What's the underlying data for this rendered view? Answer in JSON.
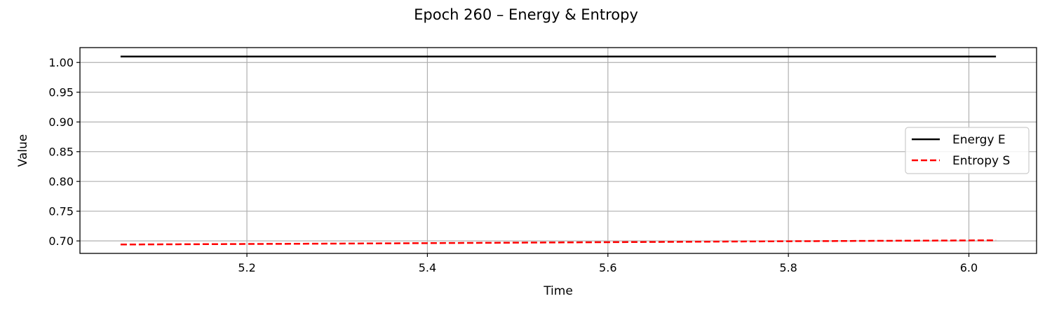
{
  "chart_data": {
    "type": "line",
    "title": "Epoch 260 – Energy & Entropy",
    "xlabel": "Time",
    "ylabel": "Value",
    "xlim": [
      5.015,
      6.075
    ],
    "ylim": [
      0.679,
      1.025
    ],
    "xticks": [
      5.2,
      5.4,
      5.6,
      5.8,
      6.0
    ],
    "xtick_labels": [
      "5.2",
      "5.4",
      "5.6",
      "5.8",
      "6.0"
    ],
    "yticks": [
      0.7,
      0.75,
      0.8,
      0.85,
      0.9,
      0.95,
      1.0
    ],
    "ytick_labels": [
      "0.70",
      "0.75",
      "0.80",
      "0.85",
      "0.90",
      "0.95",
      "1.00"
    ],
    "grid": true,
    "legend_position": "center-right",
    "series": [
      {
        "name": "Energy E",
        "color": "#000000",
        "style": "solid",
        "x": [
          5.06,
          5.3,
          5.55,
          5.8,
          6.03
        ],
        "y": [
          1.01,
          1.01,
          1.01,
          1.01,
          1.01
        ]
      },
      {
        "name": "Entropy S",
        "color": "#ff0000",
        "style": "dashed",
        "x": [
          5.06,
          5.3,
          5.55,
          5.8,
          6.03
        ],
        "y": [
          0.694,
          0.6955,
          0.6975,
          0.6995,
          0.701
        ]
      }
    ]
  }
}
